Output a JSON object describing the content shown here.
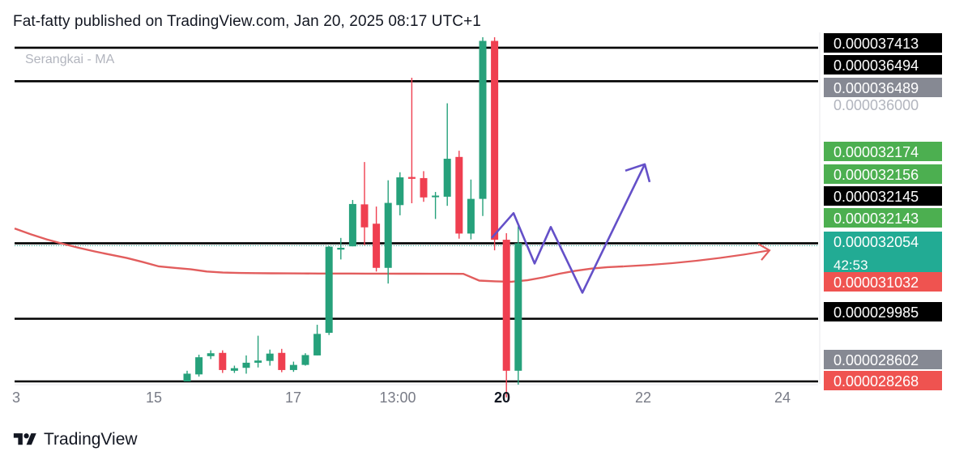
{
  "header": {
    "published_text": "Fat-fatty published on TradingView.com, Jan 20, 2025 08:17 UTC+1"
  },
  "legend": {
    "indicator": "Serangkai - MA"
  },
  "footer": {
    "brand": "TradingView",
    "logo_icon": "tradingview-logo-icon"
  },
  "colors": {
    "bull": "#26a17b",
    "bear": "#ef3f50",
    "ma": "#e25d5d",
    "path": "#6450c8",
    "level_line": "#000000"
  },
  "chart_data": {
    "type": "candlestick",
    "x_tick_labels": [
      "3",
      "15",
      "17",
      "13:00",
      "20",
      "22",
      "24"
    ],
    "price_labels": [
      {
        "value": "0.000037413",
        "bg": "#000000",
        "fg": "#ffffff"
      },
      {
        "value": "0.000036494",
        "bg": "#000000",
        "fg": "#ffffff"
      },
      {
        "value": "0.000036489",
        "bg": "#868993",
        "fg": "#ffffff"
      },
      {
        "value": "0.000036000",
        "bg": "",
        "fg": "#b2b5be"
      },
      {
        "value": "0.000032174",
        "bg": "#4caf50",
        "fg": "#ffffff"
      },
      {
        "value": "0.000032156",
        "bg": "#4caf50",
        "fg": "#ffffff"
      },
      {
        "value": "0.000032145",
        "bg": "#000000",
        "fg": "#ffffff"
      },
      {
        "value": "0.000032143",
        "bg": "#4caf50",
        "fg": "#ffffff"
      },
      {
        "value": "0.000032054",
        "sub": "42:53",
        "bg": "#22ab94",
        "fg": "#ffffff"
      },
      {
        "value": "0.000031032",
        "bg": "#ef5350",
        "fg": "#ffffff"
      },
      {
        "value": "0.000029985",
        "bg": "#000000",
        "fg": "#ffffff"
      },
      {
        "value": "0.000028602",
        "bg": "#868993",
        "fg": "#ffffff"
      },
      {
        "value": "0.000028268",
        "bg": "#ef5350",
        "fg": "#ffffff"
      }
    ],
    "horizontal_levels": [
      3.7413e-05,
      3.6494e-05,
      3.2054e-05,
      2.9985e-05,
      2.8268e-05
    ],
    "candles": [
      {
        "o": 2.8268e-05,
        "h": 2.856e-05,
        "l": 2.8268e-05,
        "c": 2.848e-05
      },
      {
        "o": 2.846e-05,
        "h": 2.9e-05,
        "l": 2.84e-05,
        "c": 2.893e-05
      },
      {
        "o": 2.896e-05,
        "h": 2.912e-05,
        "l": 2.888e-05,
        "c": 2.904e-05
      },
      {
        "o": 2.905e-05,
        "h": 2.912e-05,
        "l": 2.85e-05,
        "c": 2.858e-05
      },
      {
        "o": 2.856e-05,
        "h": 2.87e-05,
        "l": 2.85e-05,
        "c": 2.863e-05
      },
      {
        "o": 2.864e-05,
        "h": 2.898e-05,
        "l": 2.848e-05,
        "c": 2.878e-05
      },
      {
        "o": 2.878e-05,
        "h": 2.952e-05,
        "l": 2.865e-05,
        "c": 2.884e-05
      },
      {
        "o": 2.883e-05,
        "h": 2.914e-05,
        "l": 2.87e-05,
        "c": 2.903e-05
      },
      {
        "o": 2.905e-05,
        "h": 2.916e-05,
        "l": 2.852e-05,
        "c": 2.858e-05
      },
      {
        "o": 2.858e-05,
        "h": 2.881e-05,
        "l": 2.853e-05,
        "c": 2.872e-05
      },
      {
        "o": 2.872e-05,
        "h": 2.904e-05,
        "l": 2.87e-05,
        "c": 2.899e-05
      },
      {
        "o": 2.898e-05,
        "h": 2.982e-05,
        "l": 2.898e-05,
        "c": 2.957e-05
      },
      {
        "o": 2.96e-05,
        "h": 3.198e-05,
        "l": 2.954e-05,
        "c": 3.196e-05
      },
      {
        "o": 3.188e-05,
        "h": 3.22e-05,
        "l": 3.161e-05,
        "c": 3.193e-05
      },
      {
        "o": 3.197e-05,
        "h": 3.324e-05,
        "l": 3.197e-05,
        "c": 3.313e-05
      },
      {
        "o": 3.312e-05,
        "h": 3.428e-05,
        "l": 3.2e-05,
        "c": 3.249e-05
      },
      {
        "o": 3.259e-05,
        "h": 3.306e-05,
        "l": 3.128e-05,
        "c": 3.138e-05
      },
      {
        "o": 3.138e-05,
        "h": 3.378e-05,
        "l": 3.095e-05,
        "c": 3.316e-05
      },
      {
        "o": 3.31e-05,
        "h": 3.4e-05,
        "l": 3.282e-05,
        "c": 3.386e-05
      },
      {
        "o": 3.387e-05,
        "h": 3.659e-05,
        "l": 3.315e-05,
        "c": 3.382e-05
      },
      {
        "o": 3.384e-05,
        "h": 3.403e-05,
        "l": 3.319e-05,
        "c": 3.331e-05
      },
      {
        "o": 3.332e-05,
        "h": 3.346e-05,
        "l": 3.272e-05,
        "c": 3.336e-05
      },
      {
        "o": 3.333e-05,
        "h": 3.589e-05,
        "l": 3.308e-05,
        "c": 3.437e-05
      },
      {
        "o": 3.442e-05,
        "h": 3.459e-05,
        "l": 3.218e-05,
        "c": 3.232e-05
      },
      {
        "o": 3.232e-05,
        "h": 3.38e-05,
        "l": 3.216e-05,
        "c": 3.327e-05
      },
      {
        "o": 3.327e-05,
        "h": 3.77e-05,
        "l": 3.28e-05,
        "c": 3.76e-05
      },
      {
        "o": 3.76e-05,
        "h": 3.77e-05,
        "l": 3.186e-05,
        "c": 3.215e-05
      },
      {
        "o": 3.215e-05,
        "h": 3.233e-05,
        "l": 2.783e-05,
        "c": 2.856e-05
      },
      {
        "o": 2.856e-05,
        "h": 3.252e-05,
        "l": 2.818e-05,
        "c": 3.2054e-05
      }
    ],
    "ma_series": [
      3.246e-05,
      3.23e-05,
      3.216e-05,
      3.204e-05,
      3.193e-05,
      3.183e-05,
      3.174e-05,
      3.165e-05,
      3.154e-05,
      3.142e-05,
      3.138e-05,
      3.134e-05,
      3.128e-05,
      3.125e-05,
      3.124e-05,
      3.1235e-05,
      3.123e-05,
      3.1228e-05,
      3.1226e-05,
      3.1225e-05,
      3.1224e-05,
      3.1223e-05,
      3.1222e-05,
      3.1221e-05,
      3.122e-05,
      3.1219e-05,
      3.1218e-05,
      3.1217e-05,
      3.1216e-05,
      3.1032e-05,
      3.101e-05,
      3.1e-05,
      3.104e-05,
      3.112e-05,
      3.122e-05,
      3.13e-05,
      3.136e-05,
      3.14e-05,
      3.142e-05
    ],
    "ma_extension_end": 3.186e-05,
    "projection_path": [
      3.22e-05,
      3.288e-05,
      3.15e-05,
      3.25e-05,
      3.07e-05,
      3.422e-05
    ],
    "y_range": [
      2.8268e-05,
      3.77e-05
    ]
  }
}
